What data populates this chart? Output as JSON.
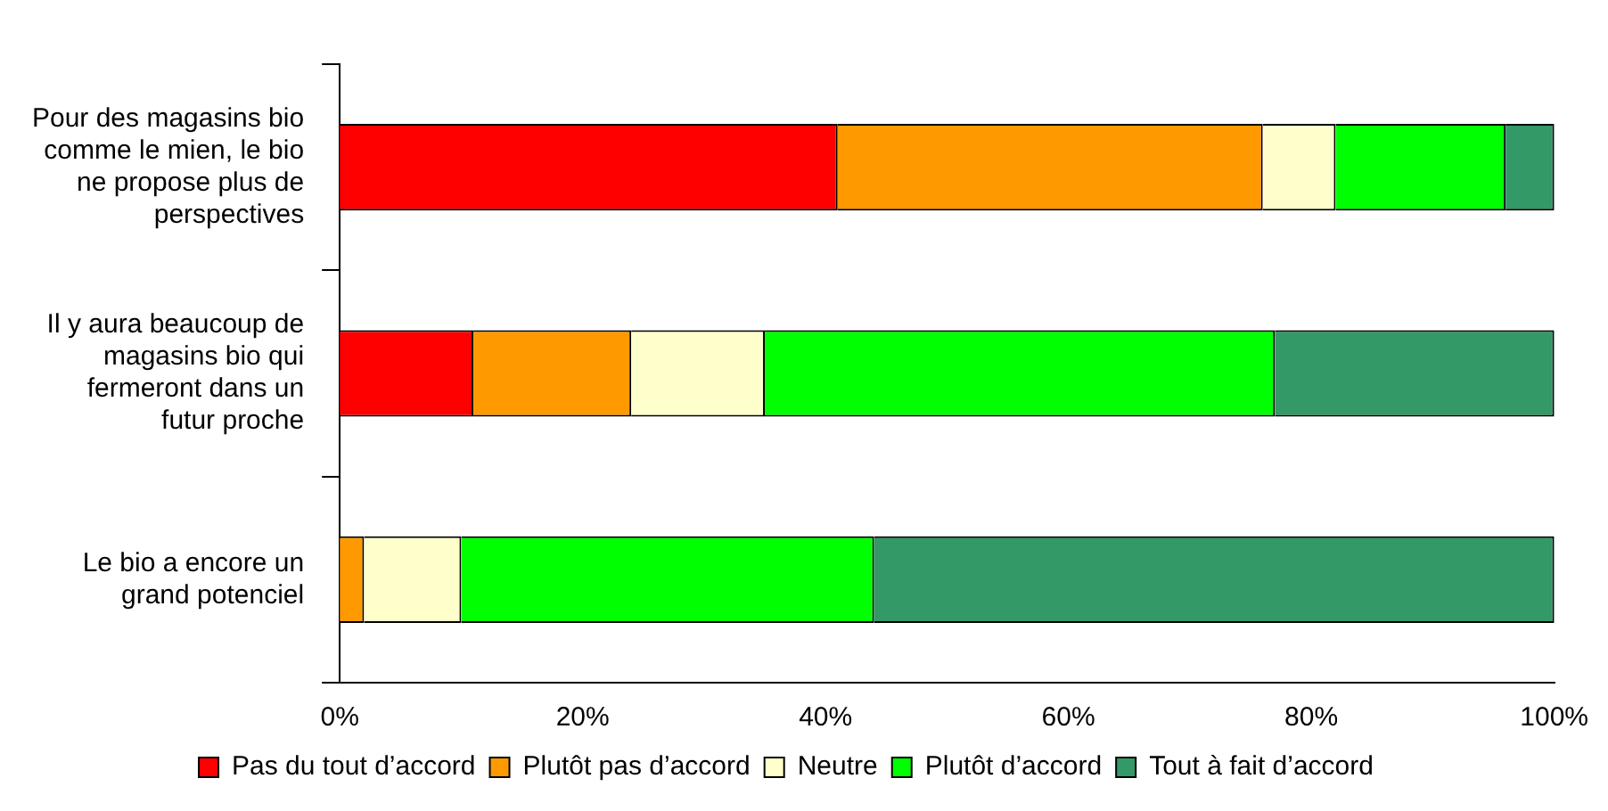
{
  "chart_data": {
    "type": "bar",
    "orientation": "horizontal",
    "stacked": true,
    "categories": [
      "Pour des magasins bio comme le mien, le bio ne propose plus de perspectives",
      "Il y aura beaucoup de magasins bio qui fermeront dans un futur proche",
      "Le bio a encore un grand potenciel"
    ],
    "series": [
      {
        "name": "Pas du tout d’accord",
        "color": "#ff0000",
        "values": [
          41,
          11,
          0
        ]
      },
      {
        "name": "Plutôt pas d’accord",
        "color": "#ff9900",
        "values": [
          35,
          13,
          2
        ]
      },
      {
        "name": "Neutre",
        "color": "#ffffcc",
        "values": [
          6,
          11,
          8
        ]
      },
      {
        "name": "Plutôt d’accord",
        "color": "#00ff00",
        "values": [
          14,
          42,
          34
        ]
      },
      {
        "name": "Tout à fait d’accord",
        "color": "#339966",
        "values": [
          4,
          23,
          56
        ]
      }
    ],
    "xlim": [
      0,
      100
    ],
    "xticks": [
      {
        "value": 0,
        "label": "0%"
      },
      {
        "value": 20,
        "label": "20%"
      },
      {
        "value": 40,
        "label": "40%"
      },
      {
        "value": 60,
        "label": "60%"
      },
      {
        "value": 80,
        "label": "80%"
      },
      {
        "value": 100,
        "label": "100%"
      }
    ],
    "grid": false,
    "legend": "bottom"
  }
}
